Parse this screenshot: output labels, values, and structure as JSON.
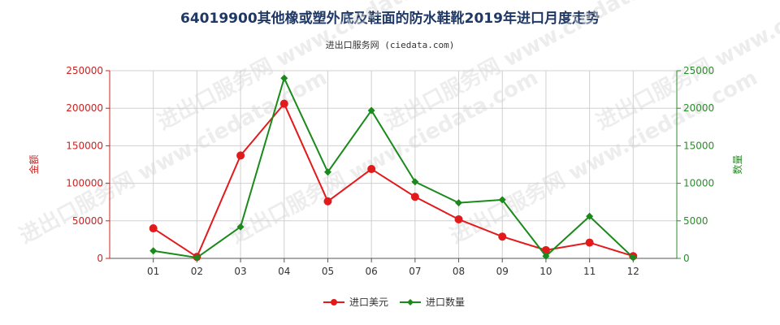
{
  "header": {
    "title": "64019900其他橡或塑外底及鞋面的防水鞋靴2019年进口月度走势",
    "subtitle": "进出口服务网 (ciedata.com)"
  },
  "watermark": "进出口服务网 www.ciedata.com",
  "chart_data": {
    "type": "line",
    "categories": [
      "01",
      "02",
      "03",
      "04",
      "05",
      "06",
      "07",
      "08",
      "09",
      "10",
      "11",
      "12"
    ],
    "series": [
      {
        "name": "进口美元",
        "axis": "left",
        "color": "#e31a1c",
        "values": [
          40000,
          2000,
          137000,
          206000,
          76000,
          119000,
          82000,
          52000,
          29000,
          11000,
          21000,
          3000
        ]
      },
      {
        "name": "进口数量",
        "axis": "right",
        "color": "#1a8a1a",
        "values": [
          1000,
          100,
          4200,
          24000,
          11500,
          19700,
          10200,
          7400,
          7800,
          300,
          5600,
          100
        ]
      }
    ],
    "ylabel_left": "金额",
    "ylabel_right": "数量",
    "ylim_left": [
      0,
      250000
    ],
    "ylim_right": [
      0,
      25000
    ],
    "yticks_left": [
      "0",
      "50000",
      "100000",
      "150000",
      "200000",
      "250000"
    ],
    "yticks_right": [
      "0",
      "5000",
      "10000",
      "15000",
      "20000",
      "25000"
    ],
    "grid": true,
    "legend": "bottom-center"
  }
}
